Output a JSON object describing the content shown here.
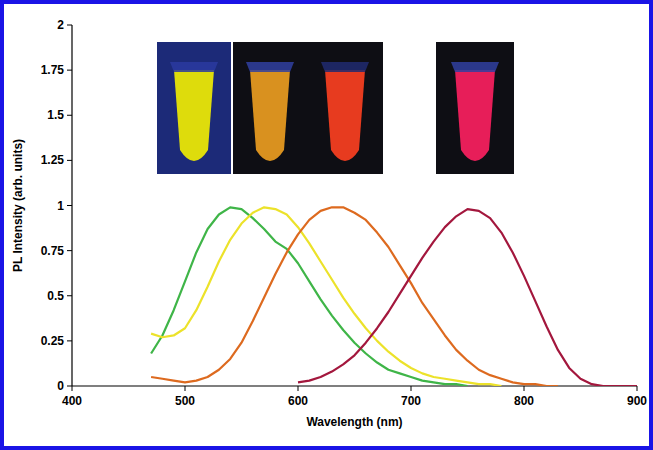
{
  "chart_data": {
    "type": "line",
    "x_label": "Wavelength (nm)",
    "y_label": "PL Intensity (arb. units)",
    "x": [
      470,
      480,
      490,
      500,
      510,
      520,
      530,
      540,
      550,
      560,
      570,
      580,
      590,
      600,
      610,
      620,
      630,
      640,
      650,
      660,
      670,
      680,
      690,
      700,
      710,
      720,
      730,
      740,
      750,
      760,
      770,
      780,
      790,
      800,
      810,
      820,
      830,
      840,
      850,
      860,
      870,
      880,
      890,
      900
    ],
    "series": [
      {
        "color": "#3fb548",
        "values": [
          0.18,
          0.28,
          0.42,
          0.58,
          0.74,
          0.87,
          0.95,
          0.99,
          0.98,
          0.93,
          0.87,
          0.8,
          0.76,
          0.68,
          0.58,
          0.48,
          0.39,
          0.31,
          0.24,
          0.18,
          0.13,
          0.09,
          0.07,
          0.05,
          0.03,
          0.02,
          0.01,
          0.01,
          0,
          null,
          null,
          null,
          null,
          null,
          null,
          null,
          null,
          null,
          null,
          null,
          null,
          null,
          null,
          null
        ]
      },
      {
        "color": "#ece22a",
        "values": [
          0.29,
          0.27,
          0.28,
          0.32,
          0.42,
          0.55,
          0.69,
          0.81,
          0.9,
          0.96,
          0.99,
          0.98,
          0.95,
          0.88,
          0.79,
          0.69,
          0.59,
          0.49,
          0.4,
          0.32,
          0.25,
          0.19,
          0.14,
          0.1,
          0.07,
          0.05,
          0.04,
          0.03,
          0.02,
          0.01,
          0.01,
          0,
          null,
          null,
          null,
          null,
          null,
          null,
          null,
          null,
          null,
          null,
          null,
          null
        ]
      },
      {
        "color": "#dd6a1f",
        "values": [
          0.05,
          0.04,
          0.03,
          0.02,
          0.03,
          0.05,
          0.09,
          0.15,
          0.24,
          0.36,
          0.49,
          0.62,
          0.74,
          0.84,
          0.92,
          0.97,
          0.99,
          0.99,
          0.96,
          0.92,
          0.85,
          0.77,
          0.67,
          0.57,
          0.46,
          0.37,
          0.28,
          0.2,
          0.14,
          0.09,
          0.06,
          0.04,
          0.02,
          0.01,
          0.01,
          0,
          0,
          null,
          null,
          null,
          null,
          null,
          null,
          null
        ]
      },
      {
        "color": "#a3173d",
        "values": [
          null,
          null,
          null,
          null,
          null,
          null,
          null,
          null,
          null,
          null,
          null,
          null,
          null,
          0.02,
          0.03,
          0.05,
          0.08,
          0.12,
          0.17,
          0.24,
          0.32,
          0.41,
          0.51,
          0.61,
          0.71,
          0.8,
          0.88,
          0.94,
          0.98,
          0.97,
          0.93,
          0.85,
          0.74,
          0.61,
          0.47,
          0.33,
          0.2,
          0.1,
          0.04,
          0.01,
          0,
          0,
          0,
          0
        ]
      }
    ],
    "xlim": [
      400,
      900
    ],
    "xticks": [
      400,
      500,
      600,
      700,
      800,
      900
    ],
    "ylim": [
      0,
      2
    ],
    "yticks": [
      0,
      0.25,
      0.5,
      0.75,
      1,
      1.25,
      1.5,
      1.75,
      2
    ],
    "grid": false
  }
}
